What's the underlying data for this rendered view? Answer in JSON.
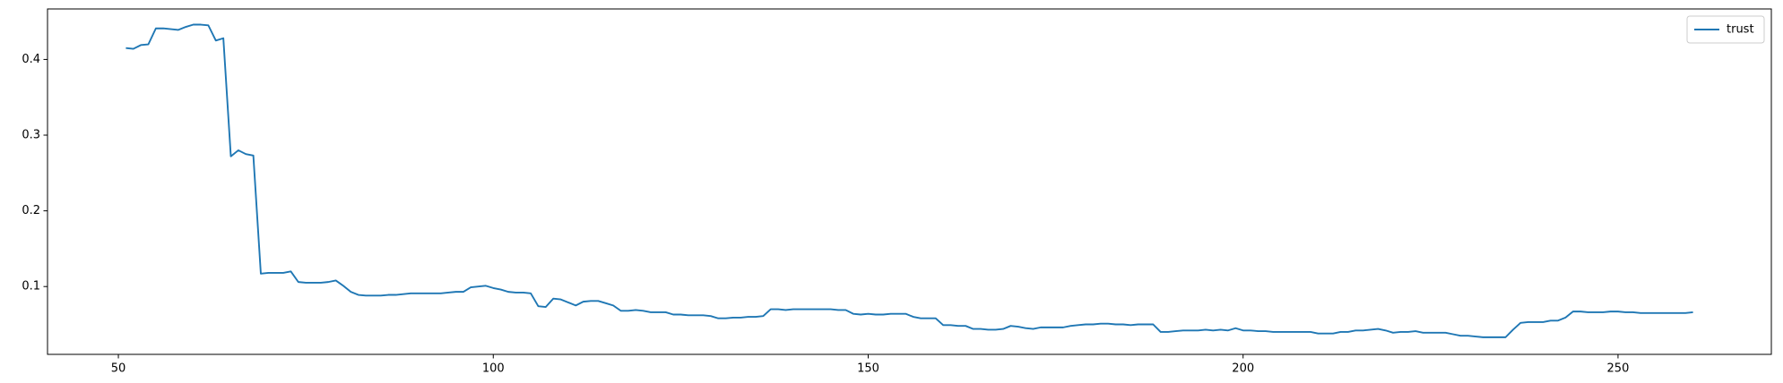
{
  "chart_data": {
    "type": "line",
    "x": [
      51,
      52,
      53,
      54,
      55,
      56,
      57,
      58,
      59,
      60,
      61,
      62,
      63,
      64,
      65,
      66,
      67,
      68,
      69,
      70,
      71,
      72,
      73,
      74,
      75,
      76,
      77,
      78,
      79,
      80,
      81,
      82,
      83,
      84,
      85,
      86,
      87,
      88,
      89,
      90,
      91,
      92,
      93,
      94,
      95,
      96,
      97,
      98,
      99,
      100,
      101,
      102,
      103,
      104,
      105,
      106,
      107,
      108,
      109,
      110,
      111,
      112,
      113,
      114,
      115,
      116,
      117,
      118,
      119,
      120,
      121,
      122,
      123,
      124,
      125,
      126,
      127,
      128,
      129,
      130,
      131,
      132,
      133,
      134,
      135,
      136,
      137,
      138,
      139,
      140,
      141,
      142,
      143,
      144,
      145,
      146,
      147,
      148,
      149,
      150,
      151,
      152,
      153,
      154,
      155,
      156,
      157,
      158,
      159,
      160,
      161,
      162,
      163,
      164,
      165,
      166,
      167,
      168,
      169,
      170,
      171,
      172,
      173,
      174,
      175,
      176,
      177,
      178,
      179,
      180,
      181,
      182,
      183,
      184,
      185,
      186,
      187,
      188,
      189,
      190,
      191,
      192,
      193,
      194,
      195,
      196,
      197,
      198,
      199,
      200,
      201,
      202,
      203,
      204,
      205,
      206,
      207,
      208,
      209,
      210,
      211,
      212,
      213,
      214,
      215,
      216,
      217,
      218,
      219,
      220,
      221,
      222,
      223,
      224,
      225,
      226,
      227,
      228,
      229,
      230,
      231,
      232,
      233,
      234,
      235,
      236,
      237,
      238,
      239,
      240,
      241,
      242,
      243,
      244,
      245,
      246,
      247,
      248,
      249,
      250,
      251,
      252,
      253,
      254,
      255,
      256,
      257,
      258,
      259,
      260
    ],
    "series": [
      {
        "name": "trust",
        "color": "#1f77b4",
        "values": [
          0.415,
          0.414,
          0.419,
          0.42,
          0.441,
          0.441,
          0.44,
          0.439,
          0.443,
          0.446,
          0.446,
          0.445,
          0.425,
          0.428,
          0.272,
          0.28,
          0.275,
          0.273,
          0.117,
          0.118,
          0.118,
          0.118,
          0.12,
          0.106,
          0.105,
          0.105,
          0.105,
          0.106,
          0.108,
          0.101,
          0.093,
          0.089,
          0.088,
          0.088,
          0.088,
          0.089,
          0.089,
          0.09,
          0.091,
          0.091,
          0.091,
          0.091,
          0.091,
          0.092,
          0.093,
          0.093,
          0.099,
          0.1,
          0.101,
          0.098,
          0.096,
          0.093,
          0.092,
          0.092,
          0.091,
          0.074,
          0.073,
          0.084,
          0.083,
          0.079,
          0.075,
          0.08,
          0.081,
          0.081,
          0.078,
          0.075,
          0.068,
          0.068,
          0.069,
          0.068,
          0.066,
          0.066,
          0.066,
          0.063,
          0.063,
          0.062,
          0.062,
          0.062,
          0.061,
          0.058,
          0.058,
          0.059,
          0.059,
          0.06,
          0.06,
          0.061,
          0.07,
          0.07,
          0.069,
          0.07,
          0.07,
          0.07,
          0.07,
          0.07,
          0.07,
          0.069,
          0.069,
          0.064,
          0.063,
          0.064,
          0.063,
          0.063,
          0.064,
          0.064,
          0.064,
          0.06,
          0.058,
          0.058,
          0.058,
          0.049,
          0.049,
          0.048,
          0.048,
          0.044,
          0.044,
          0.043,
          0.043,
          0.044,
          0.048,
          0.047,
          0.045,
          0.044,
          0.046,
          0.046,
          0.046,
          0.046,
          0.048,
          0.049,
          0.05,
          0.05,
          0.051,
          0.051,
          0.05,
          0.05,
          0.049,
          0.05,
          0.05,
          0.05,
          0.04,
          0.04,
          0.041,
          0.042,
          0.042,
          0.042,
          0.043,
          0.042,
          0.043,
          0.042,
          0.045,
          0.042,
          0.042,
          0.041,
          0.041,
          0.04,
          0.04,
          0.04,
          0.04,
          0.04,
          0.04,
          0.038,
          0.038,
          0.038,
          0.04,
          0.04,
          0.042,
          0.042,
          0.043,
          0.044,
          0.042,
          0.039,
          0.04,
          0.04,
          0.041,
          0.039,
          0.039,
          0.039,
          0.039,
          0.037,
          0.035,
          0.035,
          0.034,
          0.033,
          0.033,
          0.033,
          0.033,
          0.043,
          0.052,
          0.053,
          0.053,
          0.053,
          0.055,
          0.055,
          0.059,
          0.067,
          0.067,
          0.066,
          0.066,
          0.066,
          0.067,
          0.067,
          0.066,
          0.066,
          0.065,
          0.065,
          0.065,
          0.065,
          0.065,
          0.065,
          0.065,
          0.066
        ]
      }
    ],
    "xlim": [
      40.55,
      270.45
    ],
    "ylim": [
      0.0104,
      0.4667
    ],
    "xticks": [
      50,
      100,
      150,
      200,
      250
    ],
    "yticks": [
      0.1,
      0.2,
      0.3,
      0.4
    ],
    "legend": "upper right"
  }
}
